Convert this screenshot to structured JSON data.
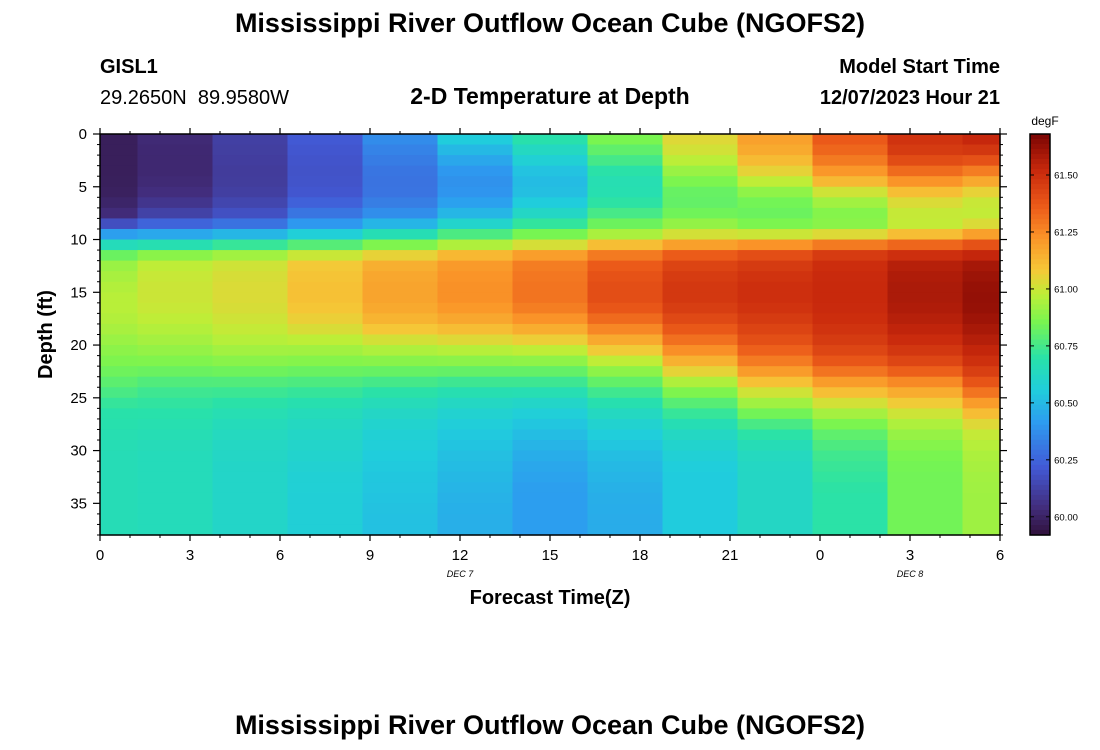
{
  "page": {
    "title": "Mississippi River Outflow Ocean Cube (NGOFS2)",
    "footer_title": "Mississippi River Outflow Ocean Cube (NGOFS2)"
  },
  "header": {
    "station": "GISL1",
    "lat": "29.2650N",
    "lon": "89.9580W",
    "plot_title": "2-D Temperature at Depth",
    "model_start_label": "Model Start Time",
    "model_start_value": "12/07/2023 Hour 21"
  },
  "chart_data": {
    "type": "heatmap",
    "title": "2-D Temperature at Depth",
    "xlabel": "Forecast Time(Z)",
    "ylabel": "Depth (ft)",
    "x_tick_labels": [
      "0",
      "3",
      "6",
      "9",
      "12",
      "15",
      "18",
      "21",
      "0",
      "3",
      "6"
    ],
    "x_hours": [
      0,
      3,
      6,
      9,
      12,
      15,
      18,
      21,
      24,
      27,
      30
    ],
    "xlim": [
      0,
      30
    ],
    "date_labels": [
      {
        "text": "DEC 7",
        "hour": 12
      },
      {
        "text": "DEC 8",
        "hour": 27
      }
    ],
    "y_ticks": [
      0,
      5,
      10,
      15,
      20,
      25,
      30,
      35
    ],
    "ylim": [
      0,
      38
    ],
    "y_reversed": true,
    "colorbar": {
      "unit": "degF",
      "min": 59.92,
      "max": 61.68,
      "ticks": [
        "60.00",
        "60.25",
        "60.50",
        "60.75",
        "61.00",
        "61.25",
        "61.50"
      ]
    },
    "columns_hours": [
      0,
      2.5,
      5,
      7.5,
      10,
      12.5,
      15,
      17.5,
      20,
      22.5,
      25,
      27.5,
      30
    ],
    "depth_profile_ft": [
      0,
      2,
      4,
      6,
      8,
      9,
      10,
      11,
      12,
      14,
      16,
      18,
      20,
      22,
      24,
      26,
      28,
      30,
      32,
      34,
      36,
      38
    ],
    "profiles_degF": [
      [
        59.98,
        59.98,
        59.98,
        59.99,
        60.05,
        60.3,
        60.55,
        60.75,
        60.9,
        60.95,
        60.97,
        60.95,
        60.9,
        60.85,
        60.78,
        60.7,
        60.68,
        60.66,
        60.66,
        60.66,
        60.66,
        60.66
      ],
      [
        60.03,
        60.02,
        60.02,
        60.05,
        60.15,
        60.35,
        60.55,
        60.8,
        60.97,
        61.0,
        61.0,
        60.97,
        60.92,
        60.85,
        60.75,
        60.7,
        60.67,
        60.65,
        60.65,
        60.65,
        60.65,
        60.65
      ],
      [
        60.12,
        60.11,
        60.1,
        60.12,
        60.2,
        60.38,
        60.6,
        60.85,
        61.0,
        61.03,
        61.03,
        61.0,
        60.95,
        60.86,
        60.75,
        60.68,
        60.64,
        60.62,
        60.61,
        60.61,
        60.61,
        60.61
      ],
      [
        60.22,
        60.2,
        60.19,
        60.21,
        60.33,
        60.48,
        60.65,
        60.92,
        61.07,
        61.1,
        61.1,
        61.05,
        60.95,
        60.85,
        60.74,
        60.66,
        60.62,
        60.6,
        60.58,
        60.57,
        60.57,
        60.57
      ],
      [
        60.38,
        60.33,
        60.29,
        60.3,
        60.4,
        60.57,
        60.76,
        60.97,
        61.14,
        61.18,
        61.18,
        61.12,
        60.98,
        60.85,
        60.72,
        60.63,
        60.58,
        60.56,
        60.54,
        60.53,
        60.52,
        60.52
      ],
      [
        60.58,
        60.47,
        60.38,
        60.4,
        60.52,
        60.68,
        60.85,
        61.05,
        61.2,
        61.23,
        61.23,
        61.15,
        61.0,
        60.85,
        60.7,
        60.6,
        60.55,
        60.52,
        60.5,
        60.48,
        60.47,
        60.47
      ],
      [
        60.72,
        60.6,
        60.5,
        60.52,
        60.65,
        60.78,
        60.92,
        61.12,
        61.27,
        61.3,
        61.3,
        61.2,
        61.02,
        60.85,
        60.7,
        60.58,
        60.52,
        60.47,
        60.44,
        60.42,
        60.42,
        60.42
      ],
      [
        60.88,
        60.78,
        60.67,
        60.68,
        60.78,
        60.88,
        61.0,
        61.22,
        61.35,
        61.4,
        61.4,
        61.3,
        61.12,
        60.93,
        60.77,
        60.65,
        60.57,
        60.52,
        60.49,
        60.47,
        60.46,
        60.46
      ],
      [
        61.05,
        61.0,
        60.88,
        60.8,
        60.85,
        60.95,
        61.08,
        61.3,
        61.42,
        61.47,
        61.47,
        61.4,
        61.28,
        61.1,
        60.9,
        60.75,
        60.64,
        60.58,
        60.55,
        60.55,
        60.55,
        60.55
      ],
      [
        61.2,
        61.15,
        61.02,
        60.85,
        60.82,
        60.9,
        61.1,
        61.35,
        61.45,
        61.5,
        61.5,
        61.45,
        61.38,
        61.25,
        61.05,
        60.88,
        60.72,
        60.64,
        60.62,
        60.62,
        60.62,
        60.62
      ],
      [
        61.38,
        61.32,
        61.18,
        60.95,
        60.85,
        60.92,
        61.15,
        61.42,
        61.5,
        61.52,
        61.52,
        61.5,
        61.45,
        61.35,
        61.15,
        60.97,
        60.82,
        60.75,
        60.72,
        60.7,
        60.7,
        60.7
      ],
      [
        61.5,
        61.45,
        61.28,
        61.05,
        60.97,
        61.0,
        61.22,
        61.45,
        61.55,
        61.58,
        61.58,
        61.55,
        61.5,
        61.4,
        61.2,
        61.03,
        60.92,
        60.86,
        60.84,
        60.84,
        60.84,
        60.84
      ],
      [
        61.55,
        61.45,
        61.22,
        61.0,
        60.98,
        61.08,
        61.3,
        61.48,
        61.58,
        61.62,
        61.63,
        61.6,
        61.55,
        61.48,
        61.35,
        61.15,
        61.0,
        60.95,
        60.93,
        60.92,
        60.92,
        60.92
      ]
    ]
  }
}
